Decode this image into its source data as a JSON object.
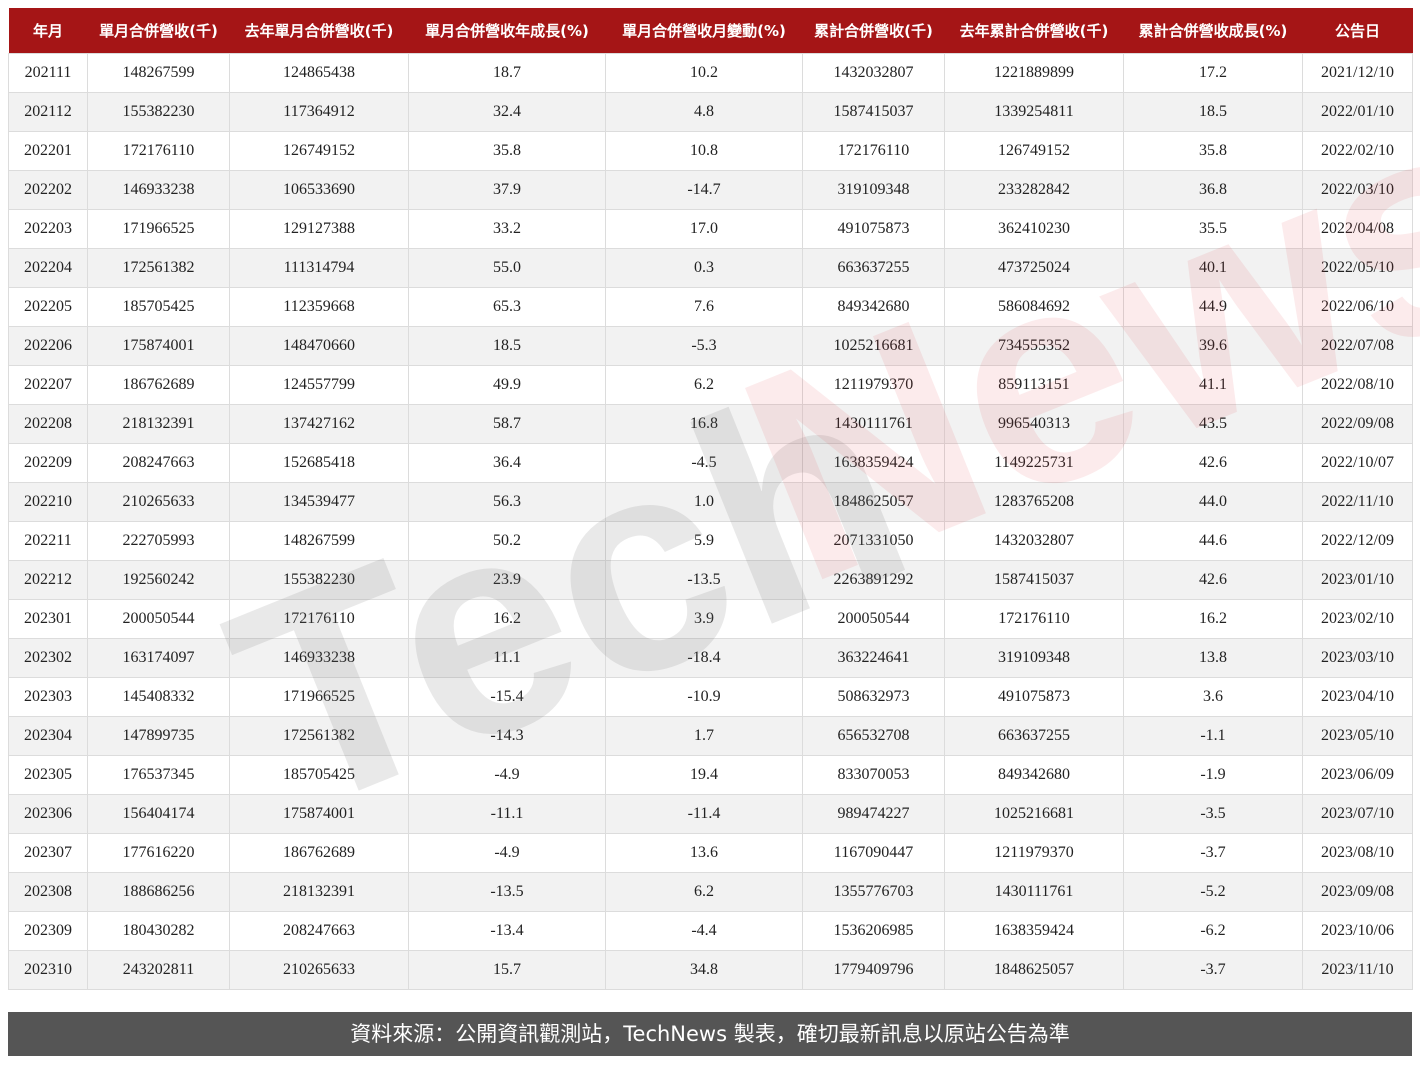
{
  "table": {
    "headers": [
      "年月",
      "單月合併營收(千)",
      "去年單月合併營收(千)",
      "單月合併營收年成長(%)",
      "單月合併營收月變動(%)",
      "累計合併營收(千)",
      "去年累計合併營收(千)",
      "累計合併營收成長(%)",
      "公告日"
    ],
    "rows": [
      [
        "202111",
        "148267599",
        "124865438",
        "18.7",
        "10.2",
        "1432032807",
        "1221889899",
        "17.2",
        "2021/12/10"
      ],
      [
        "202112",
        "155382230",
        "117364912",
        "32.4",
        "4.8",
        "1587415037",
        "1339254811",
        "18.5",
        "2022/01/10"
      ],
      [
        "202201",
        "172176110",
        "126749152",
        "35.8",
        "10.8",
        "172176110",
        "126749152",
        "35.8",
        "2022/02/10"
      ],
      [
        "202202",
        "146933238",
        "106533690",
        "37.9",
        "-14.7",
        "319109348",
        "233282842",
        "36.8",
        "2022/03/10"
      ],
      [
        "202203",
        "171966525",
        "129127388",
        "33.2",
        "17.0",
        "491075873",
        "362410230",
        "35.5",
        "2022/04/08"
      ],
      [
        "202204",
        "172561382",
        "111314794",
        "55.0",
        "0.3",
        "663637255",
        "473725024",
        "40.1",
        "2022/05/10"
      ],
      [
        "202205",
        "185705425",
        "112359668",
        "65.3",
        "7.6",
        "849342680",
        "586084692",
        "44.9",
        "2022/06/10"
      ],
      [
        "202206",
        "175874001",
        "148470660",
        "18.5",
        "-5.3",
        "1025216681",
        "734555352",
        "39.6",
        "2022/07/08"
      ],
      [
        "202207",
        "186762689",
        "124557799",
        "49.9",
        "6.2",
        "1211979370",
        "859113151",
        "41.1",
        "2022/08/10"
      ],
      [
        "202208",
        "218132391",
        "137427162",
        "58.7",
        "16.8",
        "1430111761",
        "996540313",
        "43.5",
        "2022/09/08"
      ],
      [
        "202209",
        "208247663",
        "152685418",
        "36.4",
        "-4.5",
        "1638359424",
        "1149225731",
        "42.6",
        "2022/10/07"
      ],
      [
        "202210",
        "210265633",
        "134539477",
        "56.3",
        "1.0",
        "1848625057",
        "1283765208",
        "44.0",
        "2022/11/10"
      ],
      [
        "202211",
        "222705993",
        "148267599",
        "50.2",
        "5.9",
        "2071331050",
        "1432032807",
        "44.6",
        "2022/12/09"
      ],
      [
        "202212",
        "192560242",
        "155382230",
        "23.9",
        "-13.5",
        "2263891292",
        "1587415037",
        "42.6",
        "2023/01/10"
      ],
      [
        "202301",
        "200050544",
        "172176110",
        "16.2",
        "3.9",
        "200050544",
        "172176110",
        "16.2",
        "2023/02/10"
      ],
      [
        "202302",
        "163174097",
        "146933238",
        "11.1",
        "-18.4",
        "363224641",
        "319109348",
        "13.8",
        "2023/03/10"
      ],
      [
        "202303",
        "145408332",
        "171966525",
        "-15.4",
        "-10.9",
        "508632973",
        "491075873",
        "3.6",
        "2023/04/10"
      ],
      [
        "202304",
        "147899735",
        "172561382",
        "-14.3",
        "1.7",
        "656532708",
        "663637255",
        "-1.1",
        "2023/05/10"
      ],
      [
        "202305",
        "176537345",
        "185705425",
        "-4.9",
        "19.4",
        "833070053",
        "849342680",
        "-1.9",
        "2023/06/09"
      ],
      [
        "202306",
        "156404174",
        "175874001",
        "-11.1",
        "-11.4",
        "989474227",
        "1025216681",
        "-3.5",
        "2023/07/10"
      ],
      [
        "202307",
        "177616220",
        "186762689",
        "-4.9",
        "13.6",
        "1167090447",
        "1211979370",
        "-3.7",
        "2023/08/10"
      ],
      [
        "202308",
        "188686256",
        "218132391",
        "-13.5",
        "6.2",
        "1355776703",
        "1430111761",
        "-5.2",
        "2023/09/08"
      ],
      [
        "202309",
        "180430282",
        "208247663",
        "-13.4",
        "-4.4",
        "1536206985",
        "1638359424",
        "-6.2",
        "2023/10/06"
      ],
      [
        "202310",
        "243202811",
        "210265633",
        "15.7",
        "34.8",
        "1779409796",
        "1848625057",
        "-3.7",
        "2023/11/10"
      ]
    ]
  },
  "watermark": {
    "part1": "Tech",
    "part2": "News"
  },
  "footer": {
    "text": "資料來源：公開資訊觀測站，TechNews 製表，確切最新訊息以原站公告為準"
  },
  "colors": {
    "header_bg": "#a51516",
    "footer_bg": "#555555",
    "row_alt": "#f2f2f2"
  }
}
